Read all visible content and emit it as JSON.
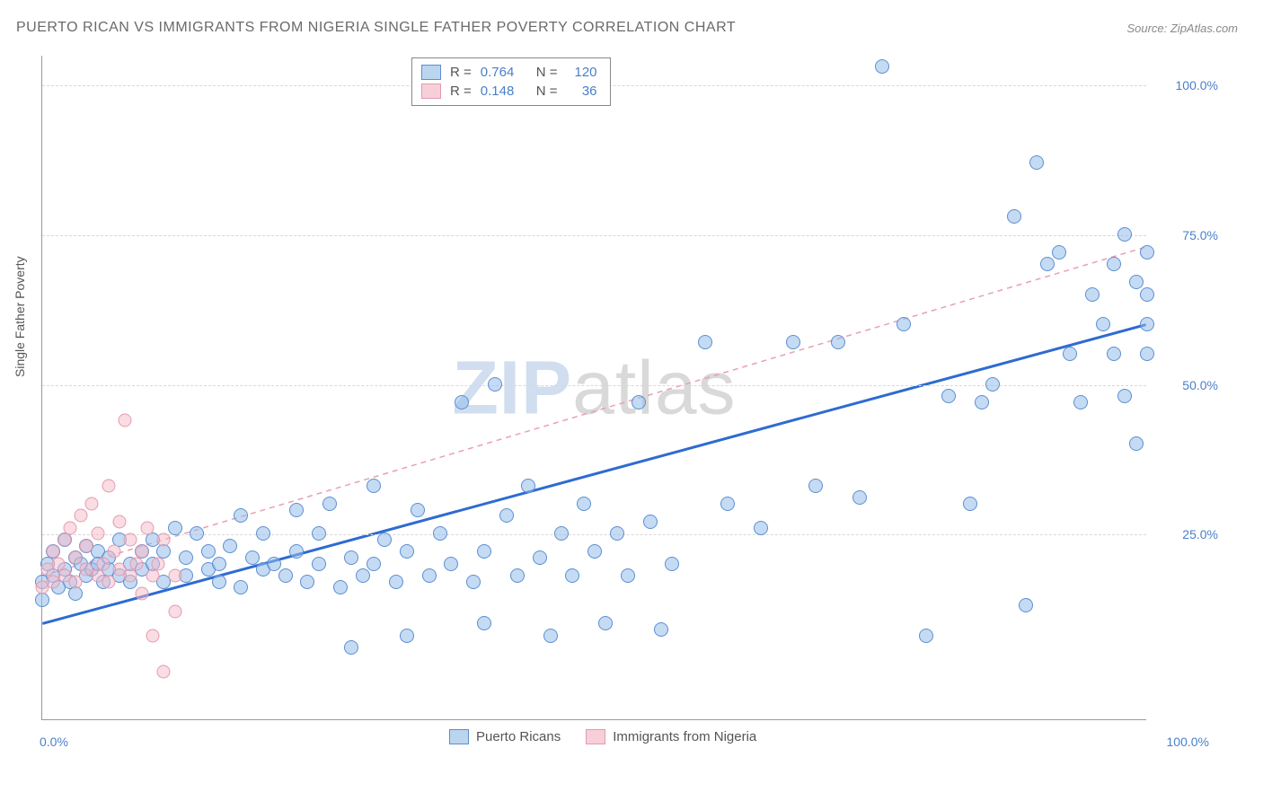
{
  "title": "PUERTO RICAN VS IMMIGRANTS FROM NIGERIA SINGLE FATHER POVERTY CORRELATION CHART",
  "source": "Source: ZipAtlas.com",
  "watermark": {
    "part1": "ZIP",
    "part2": "atlas"
  },
  "axis": {
    "y_title": "Single Father Poverty",
    "x_min_label": "0.0%",
    "x_max_label": "100.0%",
    "y_ticks": [
      {
        "value": 25,
        "label": "25.0%"
      },
      {
        "value": 50,
        "label": "50.0%"
      },
      {
        "value": 75,
        "label": "75.0%"
      },
      {
        "value": 100,
        "label": "100.0%"
      }
    ],
    "xlim": [
      0,
      100
    ],
    "ylim": [
      -6,
      105
    ],
    "label_color": "#4a7fc9",
    "label_fontsize": 14,
    "grid_color": "#d8d8d8"
  },
  "legend_top": {
    "r_label": "R =",
    "n_label": "N =",
    "rows": [
      {
        "swatch_fill": "#bcd5ef",
        "swatch_stroke": "#5b8fd0",
        "r": "0.764",
        "n": "120"
      },
      {
        "swatch_fill": "#f6cfd9",
        "swatch_stroke": "#e49ab0",
        "r": "0.148",
        "n": "36"
      }
    ],
    "value_color": "#4a7fc9"
  },
  "legend_bottom": {
    "items": [
      {
        "label": "Puerto Ricans",
        "fill": "#bcd5ef",
        "stroke": "#5b8fd0"
      },
      {
        "label": "Immigrants from Nigeria",
        "fill": "#f6cfd9",
        "stroke": "#e49ab0"
      }
    ]
  },
  "series": [
    {
      "name": "Puerto Ricans",
      "marker_fill": "rgba(150,190,235,0.55)",
      "marker_stroke": "#5b8fd0",
      "marker_size": 16,
      "trend": {
        "x1": 0,
        "y1": 10,
        "x2": 100,
        "y2": 60,
        "color": "#2e6bd1",
        "width": 3,
        "dash": "none"
      },
      "points": [
        [
          0,
          14
        ],
        [
          0,
          17
        ],
        [
          0.5,
          20
        ],
        [
          1,
          18
        ],
        [
          1,
          22
        ],
        [
          1.5,
          16
        ],
        [
          2,
          19
        ],
        [
          2,
          24
        ],
        [
          2.5,
          17
        ],
        [
          3,
          21
        ],
        [
          3,
          15
        ],
        [
          3.5,
          20
        ],
        [
          4,
          18
        ],
        [
          4,
          23
        ],
        [
          4.5,
          19
        ],
        [
          5,
          22
        ],
        [
          5,
          20
        ],
        [
          5.5,
          17
        ],
        [
          6,
          21
        ],
        [
          6,
          19
        ],
        [
          7,
          18
        ],
        [
          7,
          24
        ],
        [
          8,
          20
        ],
        [
          8,
          17
        ],
        [
          9,
          22
        ],
        [
          9,
          19
        ],
        [
          10,
          20
        ],
        [
          10,
          24
        ],
        [
          11,
          17
        ],
        [
          11,
          22
        ],
        [
          12,
          26
        ],
        [
          13,
          18
        ],
        [
          13,
          21
        ],
        [
          14,
          25
        ],
        [
          15,
          19
        ],
        [
          15,
          22
        ],
        [
          16,
          20
        ],
        [
          16,
          17
        ],
        [
          17,
          23
        ],
        [
          18,
          16
        ],
        [
          18,
          28
        ],
        [
          19,
          21
        ],
        [
          20,
          19
        ],
        [
          20,
          25
        ],
        [
          21,
          20
        ],
        [
          22,
          18
        ],
        [
          23,
          22
        ],
        [
          23,
          29
        ],
        [
          24,
          17
        ],
        [
          25,
          20
        ],
        [
          25,
          25
        ],
        [
          26,
          30
        ],
        [
          27,
          16
        ],
        [
          28,
          21
        ],
        [
          28,
          6
        ],
        [
          29,
          18
        ],
        [
          30,
          20
        ],
        [
          30,
          33
        ],
        [
          31,
          24
        ],
        [
          32,
          17
        ],
        [
          33,
          22
        ],
        [
          33,
          8
        ],
        [
          34,
          29
        ],
        [
          35,
          18
        ],
        [
          36,
          25
        ],
        [
          37,
          20
        ],
        [
          38,
          47
        ],
        [
          39,
          17
        ],
        [
          40,
          22
        ],
        [
          40,
          10
        ],
        [
          41,
          50
        ],
        [
          42,
          28
        ],
        [
          43,
          18
        ],
        [
          44,
          33
        ],
        [
          45,
          21
        ],
        [
          46,
          8
        ],
        [
          47,
          25
        ],
        [
          48,
          18
        ],
        [
          49,
          30
        ],
        [
          50,
          22
        ],
        [
          51,
          10
        ],
        [
          52,
          25
        ],
        [
          53,
          18
        ],
        [
          54,
          47
        ],
        [
          55,
          27
        ],
        [
          56,
          9
        ],
        [
          57,
          20
        ],
        [
          60,
          57
        ],
        [
          62,
          30
        ],
        [
          65,
          26
        ],
        [
          68,
          57
        ],
        [
          70,
          33
        ],
        [
          72,
          57
        ],
        [
          74,
          31
        ],
        [
          76,
          103
        ],
        [
          78,
          60
        ],
        [
          80,
          8
        ],
        [
          82,
          48
        ],
        [
          84,
          30
        ],
        [
          86,
          50
        ],
        [
          88,
          78
        ],
        [
          89,
          13
        ],
        [
          90,
          87
        ],
        [
          91,
          70
        ],
        [
          92,
          72
        ],
        [
          93,
          55
        ],
        [
          94,
          47
        ],
        [
          95,
          65
        ],
        [
          96,
          60
        ],
        [
          97,
          55
        ],
        [
          97,
          70
        ],
        [
          98,
          48
        ],
        [
          98,
          75
        ],
        [
          99,
          67
        ],
        [
          99,
          40
        ],
        [
          100,
          60
        ],
        [
          100,
          72
        ],
        [
          100,
          55
        ],
        [
          100,
          65
        ],
        [
          85,
          47
        ]
      ]
    },
    {
      "name": "Immigrants from Nigeria",
      "marker_fill": "rgba(245,185,200,0.5)",
      "marker_stroke": "#e49ab0",
      "marker_size": 15,
      "trend": {
        "x1": 0,
        "y1": 18,
        "x2": 100,
        "y2": 73,
        "color": "#e8a0b0",
        "width": 1.5,
        "dash": "6,5"
      },
      "points": [
        [
          0,
          16
        ],
        [
          0.5,
          19
        ],
        [
          1,
          22
        ],
        [
          1,
          17
        ],
        [
          1.5,
          20
        ],
        [
          2,
          24
        ],
        [
          2,
          18
        ],
        [
          2.5,
          26
        ],
        [
          3,
          21
        ],
        [
          3,
          17
        ],
        [
          3.5,
          28
        ],
        [
          4,
          19
        ],
        [
          4,
          23
        ],
        [
          4.5,
          30
        ],
        [
          5,
          18
        ],
        [
          5,
          25
        ],
        [
          5.5,
          20
        ],
        [
          6,
          33
        ],
        [
          6,
          17
        ],
        [
          6.5,
          22
        ],
        [
          7,
          19
        ],
        [
          7,
          27
        ],
        [
          7.5,
          44
        ],
        [
          8,
          18
        ],
        [
          8,
          24
        ],
        [
          8.5,
          20
        ],
        [
          9,
          15
        ],
        [
          9,
          22
        ],
        [
          9.5,
          26
        ],
        [
          10,
          18
        ],
        [
          10,
          8
        ],
        [
          10.5,
          20
        ],
        [
          11,
          24
        ],
        [
          11,
          2
        ],
        [
          12,
          18
        ],
        [
          12,
          12
        ]
      ]
    }
  ]
}
